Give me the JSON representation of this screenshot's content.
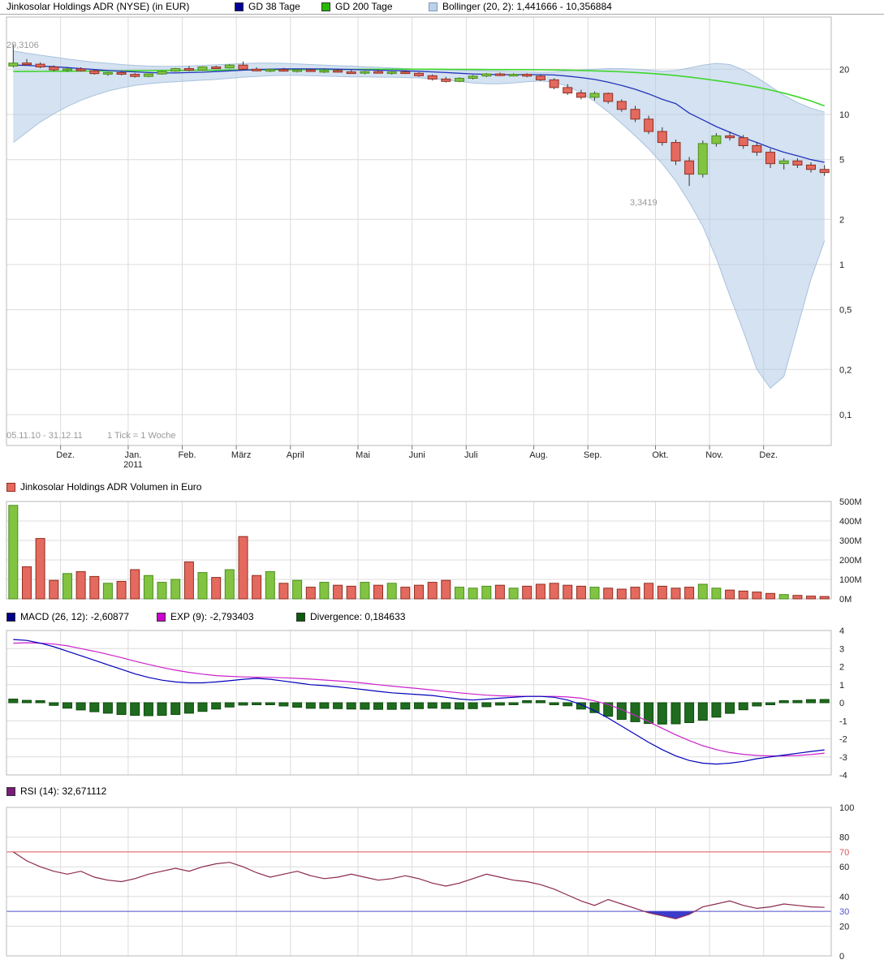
{
  "header": {
    "title": "Jinkosolar Holdings ADR (NYSE) (in EUR)",
    "gd38": "GD 38 Tage",
    "gd200": "GD 200 Tage",
    "bollinger": "Bollinger (20, 2): 1,441666 - 10,356884"
  },
  "legends": {
    "volume": "Jinkosolar Holdings ADR Volumen in Euro",
    "macd": "MACD (26, 12): -2,60877",
    "exp": "EXP (9): -2,793403",
    "divergence": "Divergence: 0,184633",
    "rsi": "RSI (14): 32,671112"
  },
  "colors": {
    "axis_text": "#222222",
    "muted_text": "#999999",
    "grid": "#dcdcdc",
    "border": "#b9b9b9",
    "up": "#82c341",
    "up_border": "#4a8f1f",
    "down": "#e4695e",
    "down_border": "#8f2f23",
    "gd38": "#2233bb",
    "gd200": "#3fd62b",
    "boll_fill": "rgba(170,197,228,0.5)",
    "boll_line": "#a9c2de",
    "macd_line": "#0000bb",
    "exp_line": "#cc22cc",
    "div_bar": "#1f6b1f",
    "div_bar_border": "#0c4d0c",
    "rsi_line": "#8b2850",
    "rsi_fill": "#3c3ccc",
    "overbought": "#dd5555",
    "oversold": "#5050cc",
    "gd38_sq": "#000099",
    "gd200_sq": "#22bb00",
    "boll_sq": "#bdd2e8",
    "boll_sq_border": "#7a99bb",
    "macd_sq": "#000088",
    "exp_sq": "#cc00cc",
    "div_sq": "#0b5c0b",
    "rsi_sq": "#7a1b7a",
    "vol_sq": "#e4695e",
    "vol_sq_border": "#8f2f23"
  },
  "chart_data": {
    "type": "candlestick",
    "weeks": 61,
    "timeframe": {
      "range": "05.11.10 - 31.12.11",
      "tick": "1 Tick = 1 Woche"
    },
    "month_boundaries": [
      4,
      9,
      13,
      17,
      21,
      26,
      30,
      34,
      39,
      43,
      48,
      52,
      56
    ],
    "month_labels": [
      "Dez.",
      "Jan.",
      "Feb.",
      "März",
      "April",
      "Mai",
      "Juni",
      "Juli",
      "Aug.",
      "Sep.",
      "Okt.",
      "Nov.",
      "Dez."
    ],
    "year_label": "2011",
    "year_under_index": 1,
    "price": {
      "scale": "log",
      "log_ticks": [
        [
          "20",
          20
        ],
        [
          "10",
          10
        ],
        [
          "5",
          5
        ],
        [
          "2",
          2
        ],
        [
          "1",
          1
        ],
        [
          "0,5",
          0.5
        ],
        [
          "0,2",
          0.2
        ],
        [
          "0,1",
          0.1
        ]
      ],
      "high_label": "29,3106",
      "low_label": "3,3419",
      "candles": [
        [
          21.0,
          29.31,
          20.5,
          22.0
        ],
        [
          22.0,
          23.4,
          21.3,
          21.6
        ],
        [
          21.6,
          22.2,
          20.3,
          20.7
        ],
        [
          20.7,
          21.2,
          19.4,
          19.8
        ],
        [
          19.8,
          20.4,
          19.2,
          20.1
        ],
        [
          20.1,
          20.6,
          19.3,
          19.5
        ],
        [
          19.5,
          19.9,
          18.4,
          18.7
        ],
        [
          18.7,
          19.2,
          18.1,
          19.0
        ],
        [
          19.0,
          19.5,
          18.2,
          18.5
        ],
        [
          18.5,
          18.9,
          17.6,
          17.9
        ],
        [
          17.9,
          18.8,
          17.7,
          18.6
        ],
        [
          18.6,
          19.6,
          18.4,
          19.4
        ],
        [
          19.4,
          20.4,
          19.2,
          20.2
        ],
        [
          20.2,
          21.0,
          19.4,
          19.7
        ],
        [
          19.7,
          20.9,
          19.5,
          20.7
        ],
        [
          20.7,
          21.1,
          20.1,
          20.4
        ],
        [
          20.4,
          21.6,
          20.2,
          21.3
        ],
        [
          21.3,
          22.5,
          19.6,
          20.0
        ],
        [
          20.0,
          20.6,
          19.4,
          19.7
        ],
        [
          19.7,
          20.2,
          19.1,
          19.9
        ],
        [
          19.9,
          20.4,
          19.3,
          19.5
        ],
        [
          19.5,
          20.0,
          19.0,
          19.8
        ],
        [
          19.8,
          20.2,
          19.2,
          19.4
        ],
        [
          19.4,
          19.9,
          18.9,
          19.6
        ],
        [
          19.6,
          20.0,
          19.0,
          19.2
        ],
        [
          19.2,
          19.7,
          18.7,
          19.0
        ],
        [
          19.0,
          19.5,
          18.5,
          19.3
        ],
        [
          19.3,
          19.8,
          18.8,
          19.0
        ],
        [
          19.0,
          19.4,
          18.4,
          19.2
        ],
        [
          19.2,
          19.6,
          18.6,
          18.8
        ],
        [
          18.8,
          19.1,
          17.8,
          18.1
        ],
        [
          18.1,
          18.5,
          16.8,
          17.2
        ],
        [
          17.2,
          17.8,
          16.3,
          16.6
        ],
        [
          16.6,
          17.7,
          16.4,
          17.4
        ],
        [
          17.4,
          18.3,
          17.1,
          18.0
        ],
        [
          18.0,
          18.9,
          17.7,
          18.6
        ],
        [
          18.6,
          19.0,
          18.0,
          18.3
        ],
        [
          18.3,
          18.8,
          17.9,
          18.5
        ],
        [
          18.5,
          18.8,
          17.7,
          18.0
        ],
        [
          18.0,
          18.4,
          16.7,
          17.0
        ],
        [
          17.0,
          17.4,
          14.7,
          15.1
        ],
        [
          15.1,
          15.9,
          13.5,
          13.9
        ],
        [
          13.9,
          14.6,
          12.6,
          13.0
        ],
        [
          13.0,
          14.2,
          12.4,
          13.8
        ],
        [
          13.8,
          14.0,
          11.8,
          12.2
        ],
        [
          12.2,
          12.6,
          10.4,
          10.8
        ],
        [
          10.8,
          11.4,
          8.9,
          9.3
        ],
        [
          9.3,
          9.8,
          7.4,
          7.7
        ],
        [
          7.7,
          8.2,
          6.2,
          6.5
        ],
        [
          6.5,
          6.8,
          4.6,
          4.9
        ],
        [
          4.9,
          5.2,
          3.3419,
          4.0
        ],
        [
          4.0,
          6.7,
          3.8,
          6.4
        ],
        [
          6.4,
          7.5,
          6.1,
          7.2
        ],
        [
          7.2,
          7.7,
          6.7,
          7.0
        ],
        [
          7.0,
          7.3,
          5.9,
          6.2
        ],
        [
          6.2,
          6.5,
          5.3,
          5.6
        ],
        [
          5.6,
          5.9,
          4.4,
          4.7
        ],
        [
          4.7,
          5.1,
          4.3,
          4.9
        ],
        [
          4.9,
          5.1,
          4.4,
          4.6
        ],
        [
          4.6,
          4.8,
          4.1,
          4.3
        ],
        [
          4.3,
          4.6,
          3.9,
          4.1
        ]
      ],
      "gd38": [
        21.3,
        21.2,
        21.0,
        20.8,
        20.5,
        20.2,
        19.9,
        19.6,
        19.4,
        19.2,
        19.0,
        18.9,
        18.9,
        19.0,
        19.1,
        19.3,
        19.5,
        19.7,
        19.9,
        20.0,
        20.1,
        20.1,
        20.1,
        20.1,
        20.0,
        19.9,
        19.8,
        19.7,
        19.6,
        19.5,
        19.4,
        19.2,
        19.0,
        18.8,
        18.6,
        18.5,
        18.4,
        18.4,
        18.4,
        18.4,
        18.3,
        18.0,
        17.6,
        17.1,
        16.4,
        15.6,
        14.7,
        13.7,
        12.6,
        11.8,
        10.2,
        9.2,
        8.3,
        7.6,
        7.0,
        6.5,
        6.0,
        5.6,
        5.3,
        5.0,
        4.8
      ],
      "gd200": [
        19.3,
        19.32,
        19.35,
        19.38,
        19.4,
        19.43,
        19.46,
        19.49,
        19.52,
        19.55,
        19.58,
        19.6,
        19.63,
        19.66,
        19.69,
        19.72,
        19.75,
        19.78,
        19.8,
        19.83,
        19.86,
        19.88,
        19.9,
        19.92,
        19.94,
        19.96,
        19.98,
        20.0,
        20.0,
        20.0,
        20.0,
        19.99,
        19.97,
        19.95,
        19.93,
        19.91,
        19.89,
        19.87,
        19.85,
        19.82,
        19.78,
        19.72,
        19.63,
        19.52,
        19.38,
        19.22,
        19.03,
        18.8,
        18.5,
        18.15,
        17.75,
        17.3,
        16.8,
        16.3,
        15.75,
        15.2,
        14.55,
        13.85,
        13.1,
        12.3,
        11.4
      ],
      "boll_upper": [
        26.5,
        25.6,
        24.8,
        24.1,
        23.4,
        22.8,
        22.3,
        21.9,
        21.5,
        21.2,
        21.0,
        20.9,
        20.9,
        21.0,
        21.2,
        21.4,
        21.6,
        21.8,
        22.0,
        22.0,
        21.9,
        21.7,
        21.5,
        21.3,
        21.1,
        21.0,
        20.8,
        20.6,
        20.4,
        20.2,
        20.0,
        19.9,
        19.8,
        19.7,
        19.6,
        19.5,
        19.4,
        19.3,
        19.2,
        19.1,
        19.2,
        19.5,
        19.8,
        20.0,
        20.2,
        20.2,
        20.0,
        19.7,
        19.4,
        19.6,
        20.4,
        21.3,
        21.9,
        21.5,
        19.8,
        17.6,
        15.4,
        13.4,
        12.0,
        11.0,
        10.36
      ],
      "boll_lower": [
        6.5,
        7.6,
        8.9,
        10.1,
        11.3,
        12.4,
        13.4,
        14.3,
        15.0,
        15.6,
        16.0,
        16.3,
        16.5,
        16.7,
        16.9,
        17.1,
        17.4,
        17.7,
        17.9,
        18.1,
        18.2,
        18.2,
        18.1,
        18.0,
        17.9,
        17.8,
        17.8,
        17.7,
        17.7,
        17.6,
        17.5,
        17.3,
        17.0,
        16.6,
        16.2,
        16.0,
        16.0,
        16.2,
        16.5,
        16.7,
        16.4,
        15.4,
        13.9,
        12.2,
        10.4,
        8.7,
        7.2,
        5.9,
        4.7,
        3.6,
        2.6,
        1.8,
        1.1,
        0.62,
        0.36,
        0.2,
        0.15,
        0.18,
        0.38,
        0.8,
        1.44
      ]
    },
    "volume": {
      "unit": "M EUR",
      "max": 500,
      "tick_labels": [
        "500M",
        "400M",
        "300M",
        "200M",
        "100M",
        "0M"
      ],
      "tick_values": [
        500,
        400,
        300,
        200,
        100,
        0
      ],
      "values": [
        480,
        165,
        310,
        95,
        130,
        140,
        115,
        80,
        90,
        150,
        120,
        85,
        100,
        190,
        135,
        110,
        150,
        320,
        120,
        140,
        80,
        95,
        60,
        85,
        70,
        65,
        85,
        70,
        80,
        60,
        70,
        85,
        95,
        60,
        55,
        65,
        70,
        55,
        65,
        75,
        80,
        70,
        65,
        60,
        55,
        50,
        60,
        80,
        65,
        55,
        60,
        75,
        55,
        45,
        40,
        35,
        28,
        22,
        18,
        14,
        12
      ]
    },
    "macd": {
      "ticks": [
        4,
        3,
        2,
        1,
        0,
        -1,
        -2,
        -3,
        -4
      ],
      "macd": [
        3.5,
        3.45,
        3.3,
        3.1,
        2.85,
        2.6,
        2.35,
        2.1,
        1.85,
        1.6,
        1.4,
        1.25,
        1.15,
        1.1,
        1.1,
        1.15,
        1.22,
        1.3,
        1.35,
        1.3,
        1.2,
        1.1,
        1.0,
        0.95,
        0.88,
        0.8,
        0.72,
        0.63,
        0.55,
        0.5,
        0.45,
        0.4,
        0.3,
        0.2,
        0.15,
        0.2,
        0.25,
        0.3,
        0.35,
        0.35,
        0.3,
        0.15,
        -0.1,
        -0.45,
        -0.85,
        -1.3,
        -1.75,
        -2.2,
        -2.6,
        -2.95,
        -3.2,
        -3.35,
        -3.4,
        -3.35,
        -3.25,
        -3.1,
        -3.0,
        -2.9,
        -2.8,
        -2.7,
        -2.61
      ],
      "exp": [
        3.3,
        3.32,
        3.3,
        3.25,
        3.15,
        3.0,
        2.85,
        2.68,
        2.5,
        2.3,
        2.12,
        1.95,
        1.8,
        1.68,
        1.58,
        1.5,
        1.46,
        1.43,
        1.41,
        1.4,
        1.38,
        1.35,
        1.31,
        1.26,
        1.21,
        1.15,
        1.08,
        1.0,
        0.92,
        0.85,
        0.78,
        0.7,
        0.62,
        0.55,
        0.48,
        0.42,
        0.38,
        0.36,
        0.35,
        0.35,
        0.35,
        0.32,
        0.25,
        0.1,
        -0.1,
        -0.38,
        -0.7,
        -1.05,
        -1.42,
        -1.78,
        -2.1,
        -2.38,
        -2.6,
        -2.76,
        -2.86,
        -2.92,
        -2.95,
        -2.95,
        -2.92,
        -2.87,
        -2.79
      ],
      "divergence": [
        0.2,
        0.13,
        0.0,
        -0.15,
        -0.3,
        -0.4,
        -0.5,
        -0.58,
        -0.65,
        -0.7,
        -0.72,
        -0.7,
        -0.65,
        -0.58,
        -0.48,
        -0.35,
        -0.24,
        -0.13,
        -0.06,
        -0.1,
        -0.18,
        -0.25,
        -0.31,
        -0.31,
        -0.33,
        -0.35,
        -0.36,
        -0.37,
        -0.37,
        -0.35,
        -0.33,
        -0.3,
        -0.32,
        -0.35,
        -0.33,
        -0.22,
        -0.13,
        -0.06,
        0.0,
        0.0,
        -0.05,
        -0.17,
        -0.35,
        -0.55,
        -0.75,
        -0.92,
        -1.05,
        -1.15,
        -1.18,
        -1.17,
        -1.1,
        -0.97,
        -0.8,
        -0.59,
        -0.39,
        -0.18,
        -0.05,
        0.05,
        0.12,
        0.17,
        0.18
      ]
    },
    "rsi": {
      "ticks": [
        [
          "100",
          100,
          "n"
        ],
        [
          "80",
          80,
          "n"
        ],
        [
          "70",
          70,
          "ob"
        ],
        [
          "60",
          60,
          "n"
        ],
        [
          "40",
          40,
          "n"
        ],
        [
          "30",
          30,
          "os"
        ],
        [
          "20",
          20,
          "n"
        ],
        [
          "0",
          0,
          "n"
        ]
      ],
      "grid_values": [
        80,
        60,
        40,
        20
      ],
      "overbought": 70,
      "oversold": 30,
      "values": [
        70,
        64,
        60,
        57,
        55,
        57,
        53,
        51,
        50,
        52,
        55,
        57,
        59,
        57,
        60,
        62,
        63,
        60,
        56,
        53,
        55,
        57,
        54,
        52,
        53,
        55,
        53,
        51,
        52,
        54,
        52,
        49,
        47,
        49,
        52,
        55,
        53,
        51,
        50,
        48,
        45,
        41,
        37,
        34,
        38,
        35,
        32,
        29,
        27,
        25,
        28,
        33,
        35,
        37,
        34,
        32,
        33,
        35,
        34,
        33,
        32.67
      ]
    }
  }
}
